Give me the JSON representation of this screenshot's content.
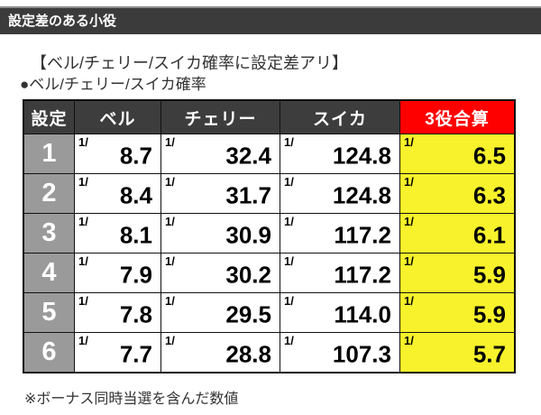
{
  "titlebar": {
    "label": "設定差のある小役"
  },
  "headings": {
    "bracket": "【ベル/チェリー/スイカ確率に設定差アリ】",
    "bullet": "●ベル/チェリー/スイカ確率"
  },
  "table": {
    "headers": [
      "設定",
      "ベル",
      "チェリー",
      "スイカ",
      "3役合算"
    ],
    "prefix": "1/",
    "rows": [
      {
        "setting": "1",
        "bell": "8.7",
        "cherry": "32.4",
        "watermelon": "124.8",
        "combined": "6.5"
      },
      {
        "setting": "2",
        "bell": "8.4",
        "cherry": "31.7",
        "watermelon": "124.8",
        "combined": "6.3"
      },
      {
        "setting": "3",
        "bell": "8.1",
        "cherry": "30.9",
        "watermelon": "117.2",
        "combined": "6.1"
      },
      {
        "setting": "4",
        "bell": "7.9",
        "cherry": "30.2",
        "watermelon": "117.2",
        "combined": "5.9"
      },
      {
        "setting": "5",
        "bell": "7.8",
        "cherry": "29.5",
        "watermelon": "114.0",
        "combined": "5.9"
      },
      {
        "setting": "6",
        "bell": "7.7",
        "cherry": "28.8",
        "watermelon": "107.3",
        "combined": "5.7"
      }
    ]
  },
  "footnote": "※ボーナス同時当選を含んだ数値",
  "colors": {
    "titlebar_bg": "#3b3b3b",
    "table_header_bg": "#3d3d3d",
    "combined_header_red": "#ff0000",
    "combined_cell_yellow": "#f7f22b",
    "setting_cell_gray": "#9a9a9a",
    "grid_line": "#111111"
  }
}
